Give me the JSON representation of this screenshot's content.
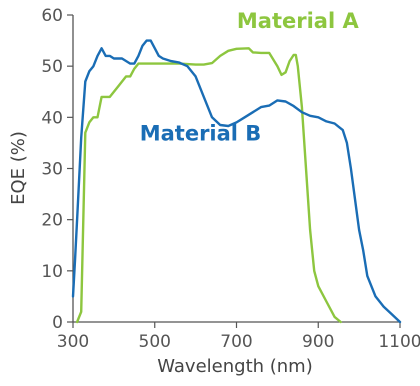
{
  "chart_data": {
    "type": "line",
    "title": "",
    "xlabel": "Wavelength (nm)",
    "ylabel": "EQE (%)",
    "xlim": [
      300,
      1100
    ],
    "ylim": [
      0,
      60
    ],
    "xticks": [
      300,
      500,
      700,
      900,
      1100
    ],
    "yticks": [
      0,
      10,
      20,
      30,
      40,
      50,
      60
    ],
    "xtick_labels": [
      "300",
      "500",
      "700",
      "900",
      "1100"
    ],
    "ytick_labels": [
      "0",
      "10",
      "20",
      "30",
      "40",
      "50",
      "60"
    ],
    "grid": false,
    "legend": "none",
    "series": [
      {
        "name": "Material A",
        "color": "#8dc63f",
        "x": [
          310,
          320,
          330,
          340,
          350,
          360,
          370,
          390,
          410,
          430,
          440,
          450,
          460,
          500,
          540,
          560,
          600,
          620,
          640,
          660,
          680,
          700,
          730,
          740,
          760,
          780,
          800,
          810,
          820,
          830,
          840,
          845,
          850,
          860,
          870,
          880,
          890,
          900,
          920,
          940,
          955
        ],
        "y": [
          0,
          2,
          37,
          39,
          40,
          40,
          44,
          44,
          46,
          48,
          48,
          49.5,
          50.5,
          50.5,
          50.5,
          50.5,
          50.3,
          50.3,
          50.6,
          52,
          53,
          53.4,
          53.5,
          52.7,
          52.6,
          52.6,
          50,
          48.3,
          48.8,
          51,
          52.2,
          52.2,
          50,
          42,
          30,
          18,
          10,
          7,
          4,
          1,
          0
        ]
      },
      {
        "name": "Material B",
        "color": "#1a6db5",
        "x": [
          300,
          305,
          310,
          320,
          330,
          340,
          350,
          360,
          370,
          380,
          390,
          400,
          420,
          440,
          450,
          460,
          470,
          480,
          490,
          500,
          510,
          520,
          540,
          560,
          580,
          600,
          620,
          640,
          660,
          680,
          700,
          720,
          740,
          760,
          780,
          800,
          820,
          840,
          860,
          880,
          900,
          920,
          940,
          960,
          970,
          980,
          990,
          1000,
          1010,
          1020,
          1040,
          1060,
          1080,
          1100
        ],
        "y": [
          5,
          12,
          20,
          36,
          47,
          49,
          50,
          52,
          53.5,
          52,
          52,
          51.5,
          51.5,
          50.5,
          50.5,
          52,
          54,
          55,
          55,
          53.5,
          52,
          51.5,
          51,
          50.7,
          50,
          48,
          44,
          40,
          38.5,
          38.3,
          39,
          40,
          41,
          42,
          42.3,
          43.3,
          43.1,
          42.2,
          41,
          40.3,
          40,
          39.2,
          38.8,
          37.5,
          35,
          30,
          24,
          18,
          14,
          9,
          5,
          3,
          1.5,
          0
        ]
      }
    ],
    "annotations": [
      {
        "text": "Material A",
        "x": 850,
        "y": 57.5,
        "color": "#8dc63f"
      },
      {
        "text": "Material B",
        "x": 612,
        "y": 35.5,
        "color": "#1a6db5"
      }
    ]
  }
}
